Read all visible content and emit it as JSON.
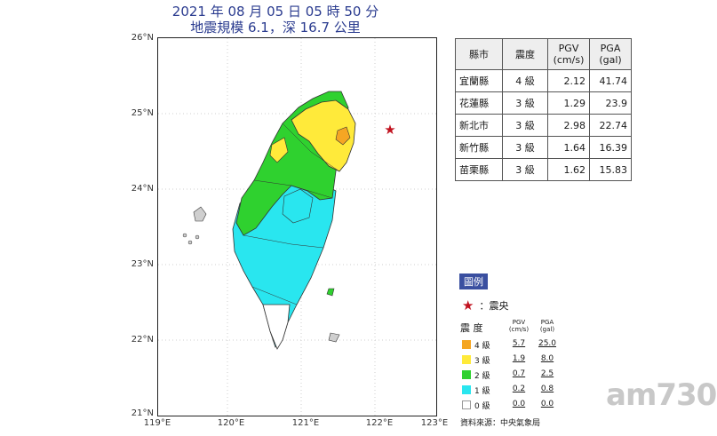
{
  "title": {
    "line1": "2021 年 08 月 05 日 05 時 50 分",
    "line2": "地震規模 6.1，深 16.7 公里"
  },
  "map": {
    "lat_labels": [
      "26°N",
      "25°N",
      "24°N",
      "23°N",
      "22°N",
      "21°N"
    ],
    "lon_labels": [
      "119°E",
      "120°E",
      "121°E",
      "122°E",
      "123°E"
    ],
    "epicenter_symbol": "star-icon",
    "epicenter_color": "#c1121f"
  },
  "table": {
    "headers": [
      "縣市",
      "震度",
      "PGV\n(cm/s)",
      "PGA\n(gal)"
    ],
    "rows": [
      {
        "county": "宜蘭縣",
        "intensity": "4 級",
        "pgv": "2.12",
        "pga": "41.74"
      },
      {
        "county": "花蓮縣",
        "intensity": "3 級",
        "pgv": "1.29",
        "pga": "23.9"
      },
      {
        "county": "新北市",
        "intensity": "3 級",
        "pgv": "2.98",
        "pga": "22.74"
      },
      {
        "county": "新竹縣",
        "intensity": "3 級",
        "pgv": "1.64",
        "pga": "16.39"
      },
      {
        "county": "苗栗縣",
        "intensity": "3 級",
        "pgv": "1.62",
        "pga": "15.83"
      }
    ]
  },
  "legend": {
    "tag": "圖例",
    "epicenter_label": "：震央",
    "head_intensity": "震 度",
    "head_pgv": "PGV\n(cm/s)",
    "head_pga": "PGA\n(gal)",
    "rows": [
      {
        "level": "4 級",
        "pgv": "5.7",
        "pga": "25.0",
        "color": "#f5a623"
      },
      {
        "level": "3 級",
        "pgv": "1.9",
        "pga": "8.0",
        "color": "#ffea3a"
      },
      {
        "level": "2 級",
        "pgv": "0.7",
        "pga": "2.5",
        "color": "#2fd12f"
      },
      {
        "level": "1 級",
        "pgv": "0.2",
        "pga": "0.8",
        "color": "#29e6ef"
      },
      {
        "level": "0 級",
        "pgv": "0.0",
        "pga": "0.0",
        "color": "#ffffff"
      }
    ],
    "source": "資料來源：中央氣象局"
  },
  "watermark": "am730"
}
